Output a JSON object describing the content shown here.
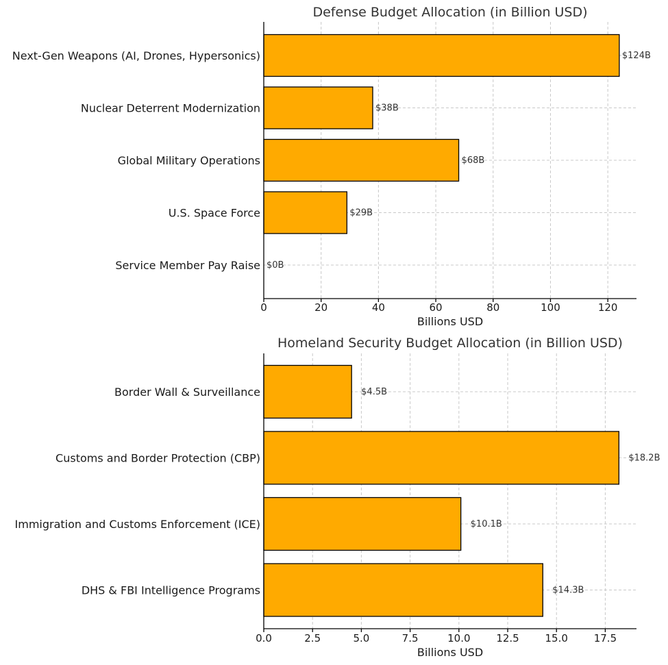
{
  "colors": {
    "bar": "#FFAA00"
  },
  "chart_data": [
    {
      "type": "bar",
      "orientation": "horizontal",
      "title": "Defense Budget Allocation (in Billion USD)",
      "xlabel": "Billions USD",
      "ylabel": "",
      "xlim": [
        0,
        130
      ],
      "xticks": [
        0,
        20,
        40,
        60,
        80,
        100,
        120
      ],
      "tick_labels": [
        "0",
        "20",
        "40",
        "60",
        "80",
        "100",
        "120"
      ],
      "grid": true,
      "categories": [
        "Next-Gen Weapons (AI, Drones, Hypersonics)",
        "Nuclear Deterrent Modernization",
        "Global Military Operations",
        "U.S. Space Force",
        "Service Member Pay Raise"
      ],
      "values": [
        124,
        38,
        68,
        29,
        0
      ],
      "data_labels": [
        "$124B",
        "$38B",
        "$68B",
        "$29B",
        "$0B"
      ]
    },
    {
      "type": "bar",
      "orientation": "horizontal",
      "title": "Homeland Security Budget Allocation (in Billion USD)",
      "xlabel": "Billions USD",
      "ylabel": "",
      "xlim": [
        0,
        19.1
      ],
      "xticks": [
        0,
        2.5,
        5,
        7.5,
        10,
        12.5,
        15,
        17.5
      ],
      "tick_labels": [
        "0.0",
        "2.5",
        "5.0",
        "7.5",
        "10.0",
        "12.5",
        "15.0",
        "17.5"
      ],
      "grid": true,
      "categories": [
        "Border Wall & Surveillance",
        "Customs and Border Protection (CBP)",
        "Immigration and Customs Enforcement (ICE)",
        "DHS & FBI Intelligence Programs"
      ],
      "values": [
        4.5,
        18.2,
        10.1,
        14.3
      ],
      "data_labels": [
        "$4.5B",
        "$18.2B",
        "$10.1B",
        "$14.3B"
      ]
    }
  ]
}
